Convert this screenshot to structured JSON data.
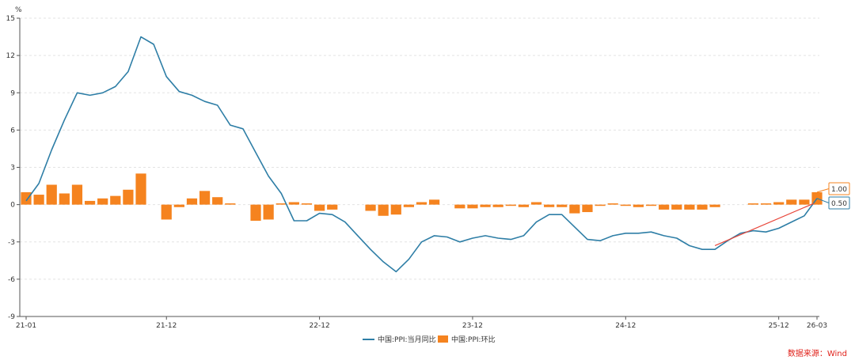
{
  "chart_data": {
    "type": "bar",
    "title": "",
    "unit_label": "%",
    "ylim": [
      -9,
      15
    ],
    "y_ticks": [
      "15",
      "12",
      "9",
      "6",
      "3",
      "0",
      "-3",
      "-6",
      "-9"
    ],
    "y_tick_values": [
      15,
      12,
      9,
      6,
      3,
      0,
      -3,
      -6,
      -9
    ],
    "grid": true,
    "legend_position": "bottom-center",
    "x_tick_labels": [
      {
        "label": "21-01",
        "index": 0
      },
      {
        "label": "21-12",
        "index": 11
      },
      {
        "label": "22-12",
        "index": 23
      },
      {
        "label": "23-12",
        "index": 35
      },
      {
        "label": "24-12",
        "index": 47
      },
      {
        "label": "25-12",
        "index": 59
      },
      {
        "label": "26-03",
        "index": 62
      }
    ],
    "categories": [
      "21-01",
      "21-02",
      "21-03",
      "21-04",
      "21-05",
      "21-06",
      "21-07",
      "21-08",
      "21-09",
      "21-10",
      "21-11",
      "21-12",
      "22-01",
      "22-02",
      "22-03",
      "22-04",
      "22-05",
      "22-06",
      "22-07",
      "22-08",
      "22-09",
      "22-10",
      "22-11",
      "22-12",
      "23-01",
      "23-02",
      "23-03",
      "23-04",
      "23-05",
      "23-06",
      "23-07",
      "23-08",
      "23-09",
      "23-10",
      "23-11",
      "23-12",
      "24-01",
      "24-02",
      "24-03",
      "24-04",
      "24-05",
      "24-06",
      "24-07",
      "24-08",
      "24-09",
      "24-10",
      "24-11",
      "24-12",
      "25-01",
      "25-02",
      "25-03",
      "25-04",
      "25-05",
      "25-06",
      "25-07",
      "25-08",
      "25-09",
      "25-10",
      "25-11",
      "25-12",
      "26-01",
      "26-02",
      "26-03"
    ],
    "series": [
      {
        "name": "中国:PPI:当月同比",
        "type": "line",
        "color": "#2e7ea6",
        "values": [
          0.3,
          1.7,
          4.4,
          6.8,
          9.0,
          8.8,
          9.0,
          9.5,
          10.7,
          13.5,
          12.9,
          10.3,
          9.1,
          8.8,
          8.3,
          8.0,
          6.4,
          6.1,
          4.2,
          2.3,
          0.9,
          -1.3,
          -1.3,
          -0.7,
          -0.8,
          -1.4,
          -2.5,
          -3.6,
          -4.6,
          -5.4,
          -4.4,
          -3.0,
          -2.5,
          -2.6,
          -3.0,
          -2.7,
          -2.5,
          -2.7,
          -2.8,
          -2.5,
          -1.4,
          -0.8,
          -0.8,
          -1.8,
          -2.8,
          -2.9,
          -2.5,
          -2.3,
          -2.3,
          -2.2,
          -2.5,
          -2.7,
          -3.3,
          -3.6,
          -3.6,
          -2.9,
          -2.3,
          -2.1,
          -2.2,
          -1.9,
          -1.4,
          -0.9,
          0.5
        ]
      },
      {
        "name": "中国:PPI:环比",
        "type": "bar",
        "color": "#f5831f",
        "values": [
          1.0,
          0.8,
          1.6,
          0.9,
          1.6,
          0.3,
          0.5,
          0.7,
          1.2,
          2.5,
          0.0,
          -1.2,
          -0.2,
          0.5,
          1.1,
          0.6,
          0.1,
          0.0,
          -1.3,
          -1.2,
          0.1,
          0.2,
          0.1,
          -0.5,
          -0.4,
          0.0,
          0.0,
          -0.5,
          -0.9,
          -0.8,
          -0.2,
          0.2,
          0.4,
          0.0,
          -0.3,
          -0.3,
          -0.2,
          -0.2,
          -0.1,
          -0.2,
          0.2,
          -0.2,
          -0.2,
          -0.7,
          -0.6,
          -0.1,
          0.1,
          -0.1,
          -0.2,
          -0.1,
          -0.4,
          -0.4,
          -0.4,
          -0.4,
          -0.2,
          0.0,
          0.0,
          0.1,
          0.1,
          0.2,
          0.4,
          0.4,
          1.0
        ]
      }
    ],
    "end_labels": [
      {
        "text": "1.00",
        "series": "中国:PPI:环比",
        "border": "#f5831f"
      },
      {
        "text": "0.50",
        "series": "中国:PPI:当月同比",
        "border": "#2e7ea6"
      }
    ],
    "trend_line": {
      "color": "#e8463a",
      "from": {
        "index": 54,
        "value": -3.3
      },
      "to": {
        "index": 62,
        "value": 0.1
      }
    }
  },
  "legend": {
    "line_label": "中国:PPI:当月同比",
    "bar_label": "中国:PPI:环比"
  },
  "source": "数据来源：Wind"
}
